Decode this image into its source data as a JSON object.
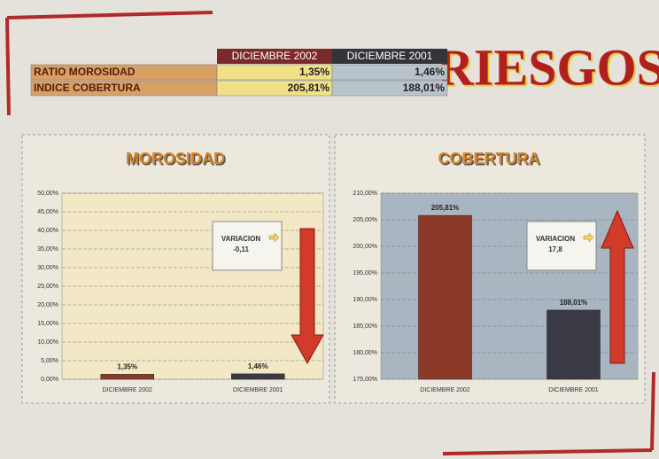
{
  "header": {
    "title": "RIESGOS"
  },
  "table": {
    "columns": [
      "DICIEMBRE 2002",
      "DICIEMBRE 2001"
    ],
    "rows": [
      [
        "RATIO MOROSIDAD",
        "1,35%",
        "1,46%"
      ],
      [
        "INDICE COBERTURA",
        "205,81%",
        "188,01%"
      ]
    ]
  },
  "chart_data": [
    {
      "type": "bar",
      "title": "MOROSIDAD",
      "categories": [
        "DICIEMBRE 2002",
        "DICIEMBRE 2001"
      ],
      "values": [
        1.35,
        1.46
      ],
      "value_labels": [
        "1,35%",
        "1,46%"
      ],
      "colors": [
        "#8b3a2a",
        "#3a3a44"
      ],
      "ylim": [
        0,
        50
      ],
      "yticks": [
        {
          "value": 0,
          "label": "0,00%"
        },
        {
          "value": 5,
          "label": "5,00%"
        },
        {
          "value": 10,
          "label": "10,00%"
        },
        {
          "value": 15,
          "label": "15,00%"
        },
        {
          "value": 20,
          "label": "20,00%"
        },
        {
          "value": 25,
          "label": "25,00%"
        },
        {
          "value": 30,
          "label": "30,00%"
        },
        {
          "value": 35,
          "label": "35,00%"
        },
        {
          "value": 40,
          "label": "40,00%"
        },
        {
          "value": 45,
          "label": "45,00%"
        },
        {
          "value": 50,
          "label": "50,00%"
        }
      ],
      "grid": true,
      "annotation": [
        "VARIACION",
        "-0,11"
      ],
      "arrow": "down"
    },
    {
      "type": "bar",
      "title": "COBERTURA",
      "categories": [
        "DICIEMBRE 2002",
        "DICIEMBRE 2001"
      ],
      "values": [
        205.81,
        188.01
      ],
      "value_labels": [
        "205,81%",
        "188,01%"
      ],
      "colors": [
        "#8b3a2a",
        "#3a3a44"
      ],
      "ylim": [
        175,
        210
      ],
      "yticks": [
        {
          "value": 175,
          "label": "175,00%"
        },
        {
          "value": 180,
          "label": "180,00%"
        },
        {
          "value": 185,
          "label": "185,00%"
        },
        {
          "value": 190,
          "label": "190,00%"
        },
        {
          "value": 195,
          "label": "195,00%"
        },
        {
          "value": 200,
          "label": "200,00%"
        },
        {
          "value": 205,
          "label": "205,00%"
        },
        {
          "value": 210,
          "label": "210,00%"
        }
      ],
      "grid": true,
      "annotation": [
        "VARIACION",
        "17,8"
      ],
      "arrow": "up"
    }
  ]
}
